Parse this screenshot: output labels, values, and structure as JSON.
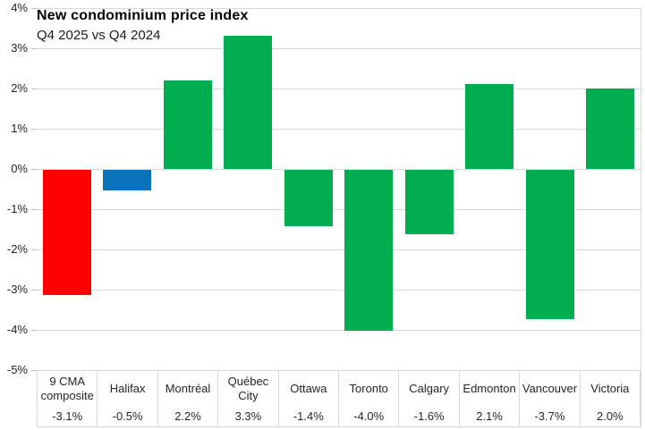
{
  "chart_data": {
    "type": "bar",
    "title": "New condominium price index",
    "subtitle": "Q4 2025 vs Q4 2024",
    "categories": [
      "9 CMA composite",
      "Halifax",
      "Montréal",
      "Québec City",
      "Ottawa",
      "Toronto",
      "Calgary",
      "Edmonton",
      "Vancouver",
      "Victoria"
    ],
    "values": [
      -3.1,
      -0.5,
      2.2,
      3.3,
      -1.4,
      -4.0,
      -1.6,
      2.1,
      -3.7,
      2.0
    ],
    "value_labels": [
      "-3.1%",
      "-0.5%",
      "2.2%",
      "3.3%",
      "-1.4%",
      "-4.0%",
      "-1.6%",
      "2.1%",
      "-3.7%",
      "2.0%"
    ],
    "bar_colors": [
      "#FF0000",
      "#0B72BC",
      "#00AE4F",
      "#00AE4F",
      "#00AE4F",
      "#00AE4F",
      "#00AE4F",
      "#00AE4F",
      "#00AE4F",
      "#00AE4F"
    ],
    "ylim": [
      -5,
      4
    ],
    "y_ticks": [
      {
        "v": 4,
        "label": "4%"
      },
      {
        "v": 3,
        "label": "3%"
      },
      {
        "v": 2,
        "label": "2%"
      },
      {
        "v": 1,
        "label": "1%"
      },
      {
        "v": 0,
        "label": "0%"
      },
      {
        "v": -1,
        "label": "-1%"
      },
      {
        "v": -2,
        "label": "-2%"
      },
      {
        "v": -3,
        "label": "-3%"
      },
      {
        "v": -4,
        "label": "-4%"
      },
      {
        "v": -5,
        "label": "-5%"
      }
    ],
    "grid": true,
    "legend": "none",
    "colors": {
      "composite_bar": "#FF0000",
      "halifax_bar": "#0B72BC",
      "city_bar": "#00AE4F",
      "gridline": "#D9D9D9"
    }
  }
}
